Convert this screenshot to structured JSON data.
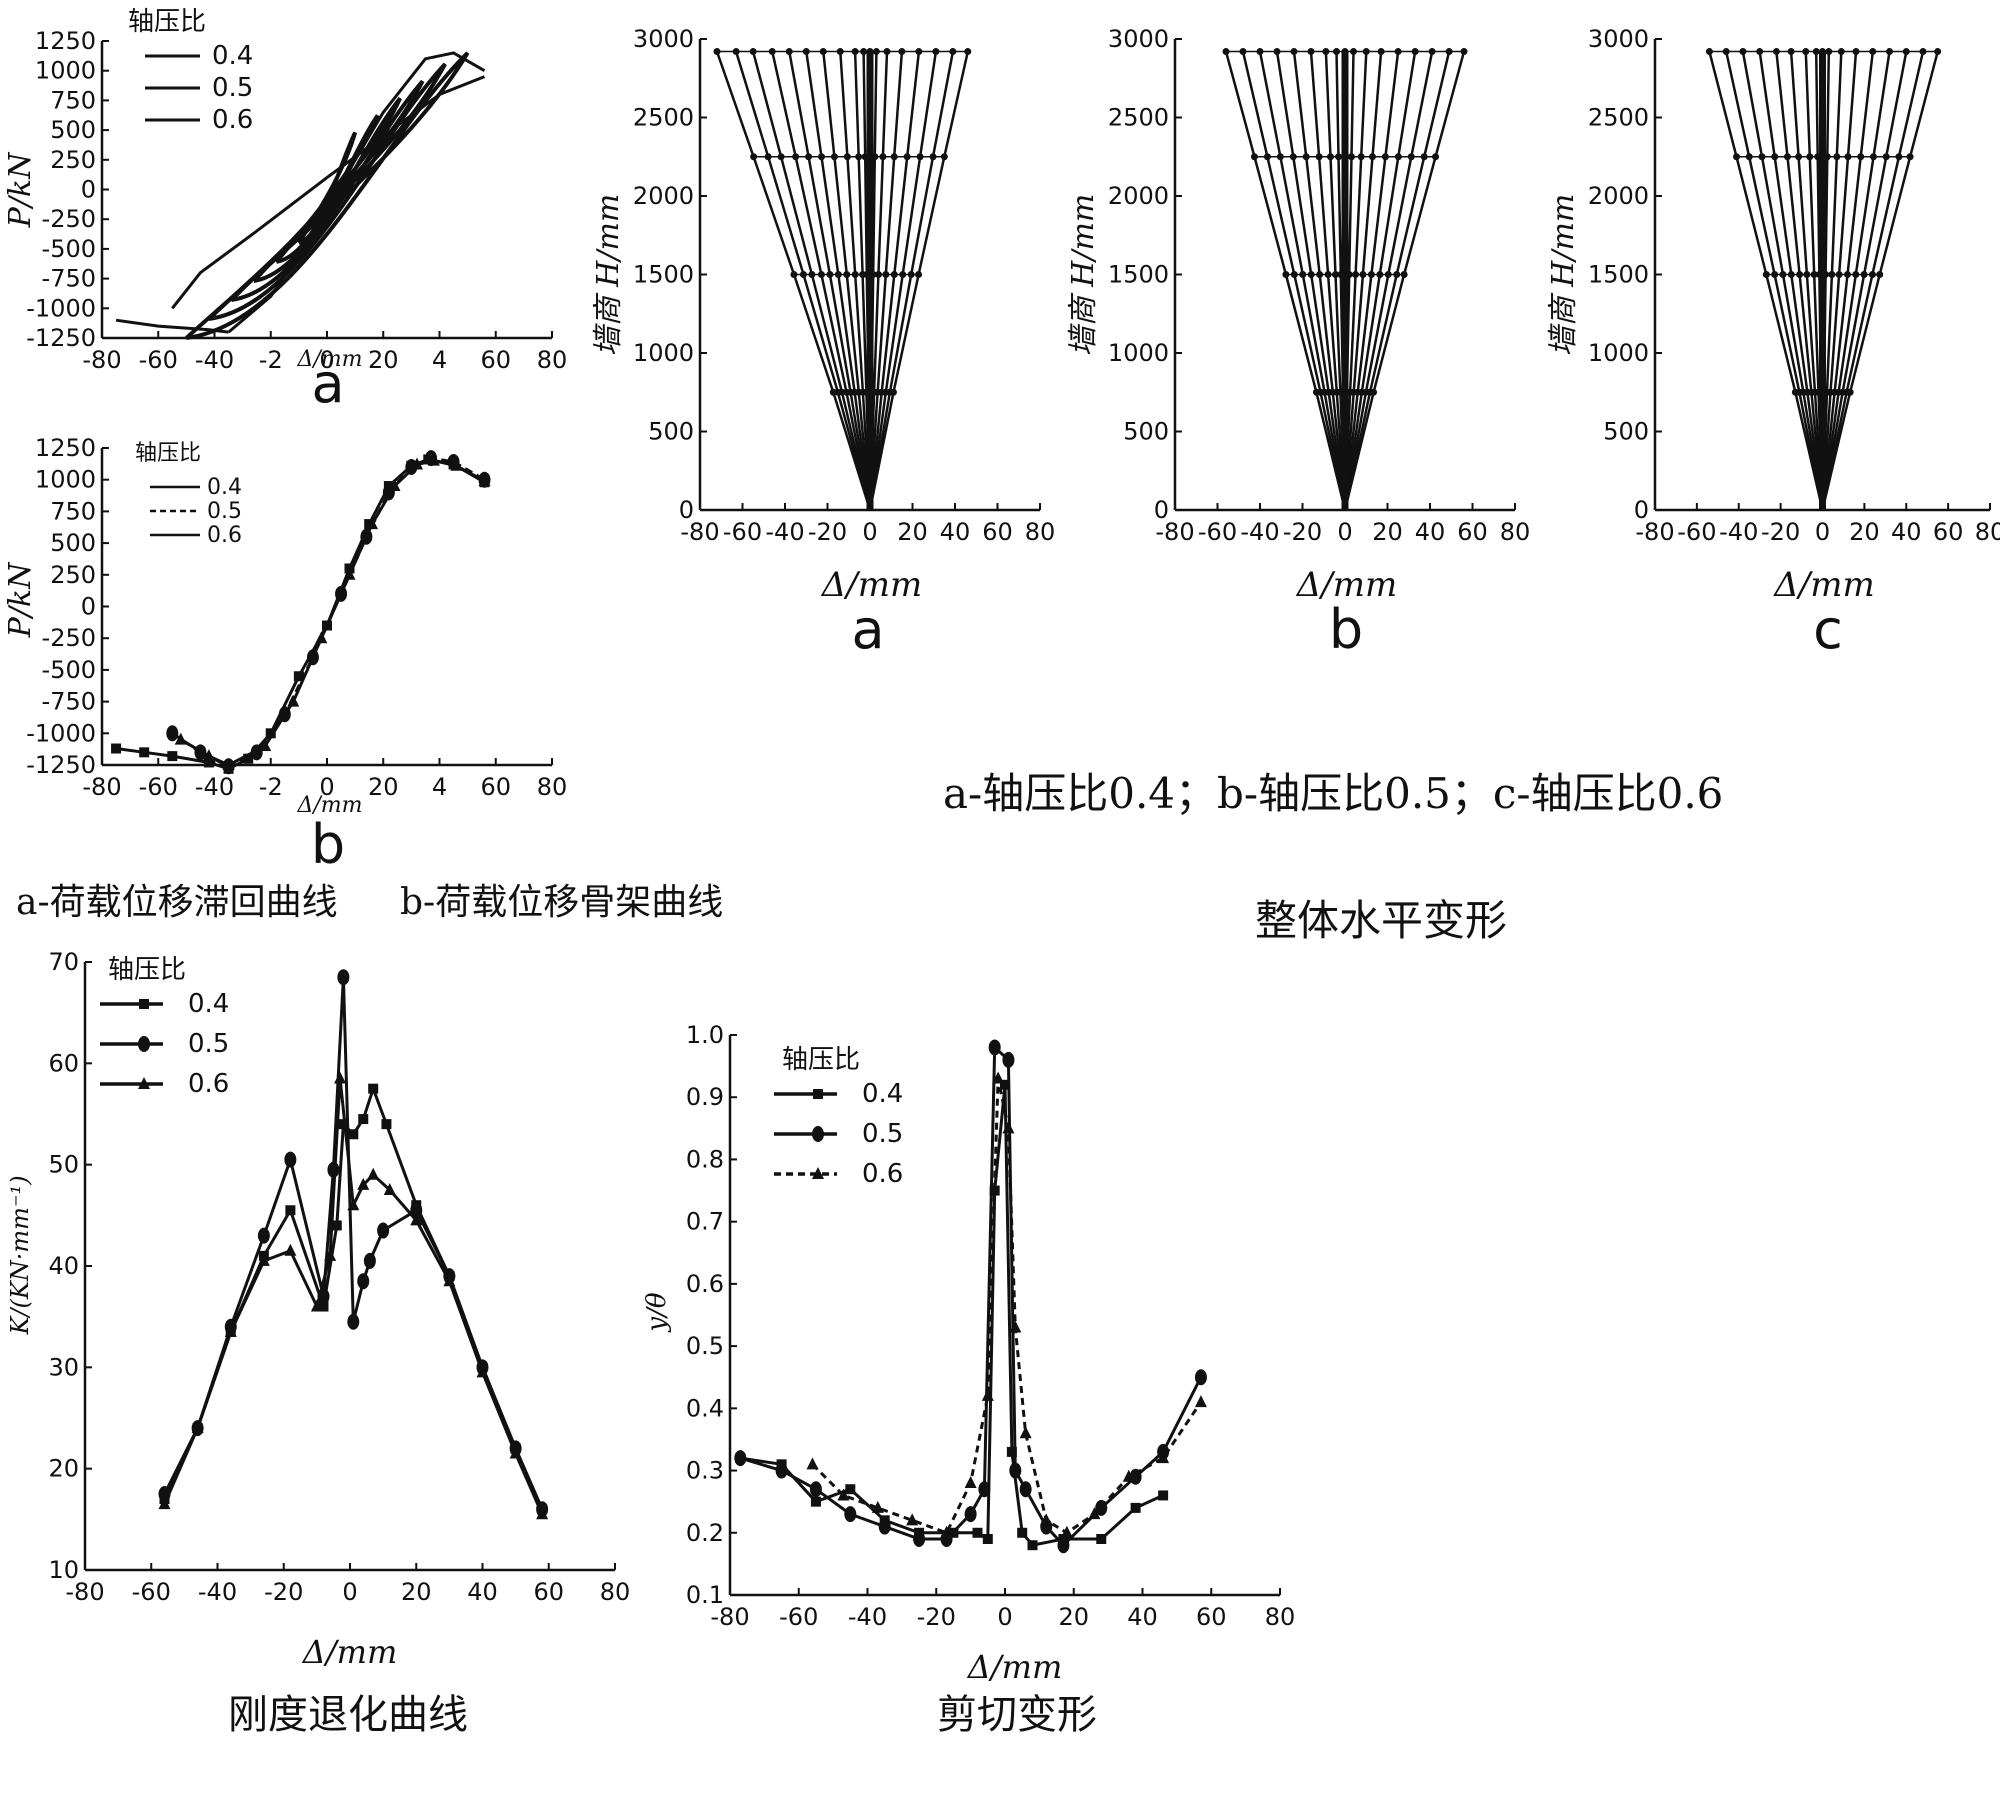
{
  "labels": {
    "legend_title": "轴压比",
    "series_names": [
      "0.4",
      "0.5",
      "0.6"
    ],
    "panel_a": "a",
    "panel_b": "b",
    "panel_c": "c",
    "axis_delta": "Δ/mm",
    "axis_delta_small": "Δ/mm",
    "axis_p": "P/kN",
    "axis_h": "墙商 H/mm",
    "axis_k": "K/(KN·mm⁻¹)",
    "axis_ratio": "y/θ",
    "caption_left": "a-荷载位移滞回曲线",
    "caption_left_b": "b-荷载位移骨架曲线",
    "caption_right": "a-轴压比0.4；b-轴压比0.5；c-轴压比0.6",
    "title_deform": "整体水平变形",
    "title_stiff": "刚度退化曲线",
    "title_shear": "剪切变形"
  },
  "colors": {
    "ink": "#111111",
    "background": "#ffffff"
  },
  "chart_data": [
    {
      "id": "hysteresis",
      "type": "line",
      "panel": "a",
      "xlabel": "Δ/mm",
      "ylabel": "P/kN",
      "xlim": [
        -80,
        80
      ],
      "ylim": [
        -1250,
        1250
      ],
      "x_ticks": [
        "-80",
        "-60",
        "-40",
        "-2",
        "0",
        "20",
        "4",
        "60",
        "80"
      ],
      "y_ticks": [
        "1250",
        "1000",
        "750",
        "500",
        "250",
        "0",
        "-250",
        "-500",
        "-750",
        "-1000",
        "-1250"
      ],
      "legend": {
        "title": "轴压比",
        "position": "top-left",
        "entries": [
          "0.4",
          "0.5",
          "0.6"
        ]
      },
      "series": [
        {
          "name": "0.4",
          "values": [
            [
              -75,
              -1100
            ],
            [
              -60,
              -1150
            ],
            [
              -42,
              -1180
            ],
            [
              -35,
              -1200
            ]
          ]
        },
        {
          "name": "0.5",
          "values": [
            [
              -35,
              -1200
            ],
            [
              -20,
              -900
            ],
            [
              0,
              -200
            ],
            [
              10,
              250
            ],
            [
              20,
              650
            ],
            [
              35,
              1100
            ],
            [
              45,
              1150
            ],
            [
              56,
              1000
            ]
          ]
        },
        {
          "name": "0.6",
          "values": [
            [
              -55,
              -1000
            ],
            [
              -45,
              -700
            ],
            [
              -25,
              -350
            ],
            [
              0,
              100
            ],
            [
              20,
              450
            ],
            [
              40,
              800
            ],
            [
              56,
              950
            ]
          ]
        }
      ]
    },
    {
      "id": "skeleton",
      "type": "line",
      "panel": "b",
      "xlabel": "Δ/mm",
      "ylabel": "P/kN",
      "xlim": [
        -80,
        80
      ],
      "ylim": [
        -1250,
        1250
      ],
      "x_ticks": [
        "-80",
        "-60",
        "-40",
        "-2",
        "0",
        "20",
        "4",
        "60",
        "80"
      ],
      "y_ticks": [
        "1250",
        "1000",
        "750",
        "500",
        "250",
        "0",
        "-250",
        "-500",
        "-750",
        "-1000",
        "-1250"
      ],
      "legend": {
        "title": "轴压比",
        "position": "top-left",
        "entries": [
          "0.4",
          "0.5",
          "0.6"
        ]
      },
      "series": [
        {
          "name": "0.4",
          "values": [
            [
              -75,
              -1120
            ],
            [
              -65,
              -1150
            ],
            [
              -55,
              -1180
            ],
            [
              -42,
              -1230
            ],
            [
              -35,
              -1280
            ],
            [
              -28,
              -1200
            ],
            [
              -20,
              -1000
            ],
            [
              -10,
              -550
            ],
            [
              0,
              -150
            ],
            [
              8,
              300
            ],
            [
              15,
              650
            ],
            [
              22,
              950
            ],
            [
              30,
              1110
            ],
            [
              36,
              1160
            ],
            [
              45,
              1120
            ],
            [
              56,
              980
            ]
          ]
        },
        {
          "name": "0.5",
          "values": [
            [
              -55,
              -1000
            ],
            [
              -45,
              -1150
            ],
            [
              -35,
              -1260
            ],
            [
              -25,
              -1150
            ],
            [
              -15,
              -850
            ],
            [
              -5,
              -400
            ],
            [
              5,
              100
            ],
            [
              14,
              550
            ],
            [
              22,
              900
            ],
            [
              30,
              1100
            ],
            [
              37,
              1170
            ],
            [
              45,
              1140
            ],
            [
              56,
              1000
            ]
          ]
        },
        {
          "name": "0.6",
          "values": [
            [
              -52,
              -1050
            ],
            [
              -42,
              -1180
            ],
            [
              -35,
              -1250
            ],
            [
              -22,
              -1100
            ],
            [
              -12,
              -750
            ],
            [
              -2,
              -250
            ],
            [
              8,
              250
            ],
            [
              16,
              650
            ],
            [
              24,
              950
            ],
            [
              32,
              1120
            ],
            [
              38,
              1150
            ],
            [
              46,
              1110
            ],
            [
              56,
              990
            ]
          ]
        }
      ]
    },
    {
      "id": "deform_a",
      "type": "line",
      "panel": "a",
      "xlabel": "Δ/mm",
      "ylabel": "墙商 H/mm",
      "xlim": [
        -80,
        80
      ],
      "ylim": [
        0,
        3000
      ],
      "x_ticks": [
        "-80",
        "-60",
        "-40",
        "-20",
        "0",
        "20",
        "40",
        "60",
        "80"
      ],
      "y_ticks": [
        "3000",
        "2500",
        "2000",
        "1500",
        "1000",
        "500",
        "0"
      ],
      "heights": [
        0,
        750,
        1500,
        2250,
        2920
      ],
      "top_drifts": [
        -72,
        -63,
        -55,
        -46,
        -38,
        -30,
        -22,
        -14,
        -7,
        -3,
        0,
        3,
        8,
        15,
        23,
        31,
        39,
        46
      ]
    },
    {
      "id": "deform_b",
      "type": "line",
      "panel": "b",
      "xlabel": "Δ/mm",
      "ylabel": "墙商 H/mm",
      "xlim": [
        -80,
        80
      ],
      "ylim": [
        0,
        3000
      ],
      "x_ticks": [
        "-80",
        "-60",
        "-40",
        "-20",
        "0",
        "20",
        "40",
        "60",
        "80"
      ],
      "y_ticks": [
        "3000",
        "2500",
        "2000",
        "1500",
        "1000",
        "500",
        "0"
      ],
      "heights": [
        0,
        750,
        1500,
        2250,
        2920
      ],
      "top_drifts": [
        -56,
        -48,
        -40,
        -32,
        -24,
        -16,
        -9,
        -4,
        0,
        4,
        10,
        17,
        25,
        33,
        41,
        49,
        56
      ]
    },
    {
      "id": "deform_c",
      "type": "line",
      "panel": "c",
      "xlabel": "Δ/mm",
      "ylabel": "墙商 H/mm",
      "xlim": [
        -80,
        80
      ],
      "ylim": [
        0,
        3000
      ],
      "x_ticks": [
        "-80",
        "-60",
        "-40",
        "-20",
        "0",
        "20",
        "40",
        "60",
        "80"
      ],
      "y_ticks": [
        "3000",
        "2500",
        "2000",
        "1500",
        "1000",
        "500",
        "0"
      ],
      "heights": [
        0,
        750,
        1500,
        2250,
        2920
      ],
      "top_drifts": [
        -54,
        -46,
        -38,
        -30,
        -22,
        -15,
        -8,
        -3,
        0,
        3,
        9,
        16,
        24,
        32,
        40,
        48,
        55
      ]
    },
    {
      "id": "stiffness",
      "type": "line",
      "xlabel": "Δ/mm",
      "ylabel": "K/(KN·mm⁻¹)",
      "xlim": [
        -80,
        80
      ],
      "ylim": [
        10,
        70
      ],
      "x_ticks": [
        "-80",
        "-60",
        "-40",
        "-20",
        "0",
        "20",
        "40",
        "60",
        "80"
      ],
      "y_ticks": [
        "70",
        "60",
        "50",
        "40",
        "30",
        "20",
        "10"
      ],
      "legend": {
        "title": "轴压比",
        "position": "top-left",
        "entries": [
          "0.4",
          "0.5",
          "0.6"
        ]
      },
      "series": [
        {
          "name": "0.4",
          "values": [
            [
              -56,
              17
            ],
            [
              -46,
              24
            ],
            [
              -36,
              33.5
            ],
            [
              -26,
              41
            ],
            [
              -18,
              45.5
            ],
            [
              -8,
              36
            ],
            [
              -4,
              44
            ],
            [
              -2,
              54
            ],
            [
              1,
              53
            ],
            [
              4,
              54.5
            ],
            [
              7,
              57.5
            ],
            [
              11,
              54
            ],
            [
              20,
              46
            ],
            [
              30,
              39
            ],
            [
              40,
              30
            ],
            [
              50,
              22
            ],
            [
              58,
              16
            ]
          ]
        },
        {
          "name": "0.5",
          "values": [
            [
              -56,
              17.5
            ],
            [
              -46,
              24
            ],
            [
              -36,
              34
            ],
            [
              -26,
              43
            ],
            [
              -18,
              50.5
            ],
            [
              -8,
              37
            ],
            [
              -5,
              49.5
            ],
            [
              -2,
              68.5
            ],
            [
              1,
              34.5
            ],
            [
              4,
              38.5
            ],
            [
              6,
              40.5
            ],
            [
              10,
              43.5
            ],
            [
              20,
              45.5
            ],
            [
              30,
              39
            ],
            [
              40,
              30
            ],
            [
              50,
              22
            ],
            [
              58,
              16
            ]
          ]
        },
        {
          "name": "0.6",
          "values": [
            [
              -56,
              16.5
            ],
            [
              -46,
              24
            ],
            [
              -36,
              33.5
            ],
            [
              -26,
              40.5
            ],
            [
              -18,
              41.5
            ],
            [
              -10,
              36
            ],
            [
              -6,
              41
            ],
            [
              -3,
              58.5
            ],
            [
              1,
              46
            ],
            [
              4,
              48
            ],
            [
              7,
              49
            ],
            [
              12,
              47.5
            ],
            [
              20,
              44.5
            ],
            [
              30,
              38.5
            ],
            [
              40,
              29.5
            ],
            [
              50,
              21.5
            ],
            [
              58,
              15.5
            ]
          ]
        }
      ]
    },
    {
      "id": "shear",
      "type": "line",
      "xlabel": "Δ/mm",
      "ylabel": "y/θ",
      "xlim": [
        -80,
        80
      ],
      "ylim": [
        0.1,
        1.0
      ],
      "x_ticks": [
        "-80",
        "-60",
        "-40",
        "-20",
        "0",
        "20",
        "40",
        "60",
        "80"
      ],
      "y_ticks": [
        "1.0",
        "0.9",
        "0.8",
        "0.7",
        "0.6",
        "0.5",
        "0.4",
        "0.3",
        "0.2",
        "0.1"
      ],
      "legend": {
        "title": "轴压比",
        "position": "top-left",
        "entries": [
          "0.4",
          "0.5",
          "0.6"
        ]
      },
      "series": [
        {
          "name": "0.4",
          "values": [
            [
              -77,
              0.32
            ],
            [
              -65,
              0.31
            ],
            [
              -55,
              0.25
            ],
            [
              -45,
              0.27
            ],
            [
              -35,
              0.22
            ],
            [
              -25,
              0.2
            ],
            [
              -15,
              0.2
            ],
            [
              -8,
              0.2
            ],
            [
              -5,
              0.19
            ],
            [
              -3,
              0.75
            ],
            [
              0,
              0.92
            ],
            [
              2,
              0.33
            ],
            [
              5,
              0.2
            ],
            [
              8,
              0.18
            ],
            [
              17,
              0.19
            ],
            [
              28,
              0.19
            ],
            [
              38,
              0.24
            ],
            [
              46,
              0.26
            ]
          ]
        },
        {
          "name": "0.5",
          "values": [
            [
              -77,
              0.32
            ],
            [
              -65,
              0.3
            ],
            [
              -55,
              0.27
            ],
            [
              -45,
              0.23
            ],
            [
              -35,
              0.21
            ],
            [
              -25,
              0.19
            ],
            [
              -17,
              0.19
            ],
            [
              -10,
              0.23
            ],
            [
              -6,
              0.27
            ],
            [
              -3,
              0.98
            ],
            [
              1,
              0.96
            ],
            [
              3,
              0.3
            ],
            [
              6,
              0.27
            ],
            [
              12,
              0.21
            ],
            [
              17,
              0.18
            ],
            [
              28,
              0.24
            ],
            [
              38,
              0.29
            ],
            [
              46,
              0.33
            ],
            [
              57,
              0.45
            ]
          ]
        },
        {
          "name": "0.6",
          "values": [
            [
              -56,
              0.31
            ],
            [
              -47,
              0.26
            ],
            [
              -37,
              0.24
            ],
            [
              -27,
              0.22
            ],
            [
              -17,
              0.2
            ],
            [
              -10,
              0.28
            ],
            [
              -5,
              0.42
            ],
            [
              -2,
              0.93
            ],
            [
              1,
              0.85
            ],
            [
              3,
              0.53
            ],
            [
              6,
              0.36
            ],
            [
              12,
              0.22
            ],
            [
              18,
              0.2
            ],
            [
              26,
              0.23
            ],
            [
              36,
              0.29
            ],
            [
              46,
              0.32
            ],
            [
              57,
              0.41
            ]
          ]
        }
      ]
    }
  ]
}
